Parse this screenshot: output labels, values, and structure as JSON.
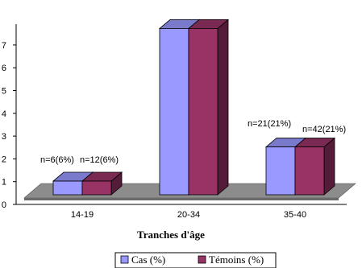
{
  "chart_data": {
    "type": "bar",
    "title": "",
    "xlabel": "Tranches d'âge",
    "ylabel": "",
    "categories": [
      "14-19",
      "20-34",
      "35-40"
    ],
    "series": [
      {
        "name": "Cas (%)",
        "values": [
          0.6,
          7.3,
          2.1
        ],
        "labels": [
          "n=6(6%)",
          "",
          "n=21(21%)"
        ],
        "color": "#9999ff"
      },
      {
        "name": "Témoins (%)",
        "values": [
          0.6,
          7.3,
          2.1
        ],
        "labels": [
          "n=12(6%)",
          "",
          "n=42(21%)"
        ],
        "color": "#993366"
      }
    ],
    "y_ticks": [
      "0",
      "1",
      "2",
      "3",
      "4",
      "5",
      "6",
      "7"
    ],
    "ylim": [
      0,
      8
    ],
    "grid": false,
    "legend_position": "bottom"
  }
}
